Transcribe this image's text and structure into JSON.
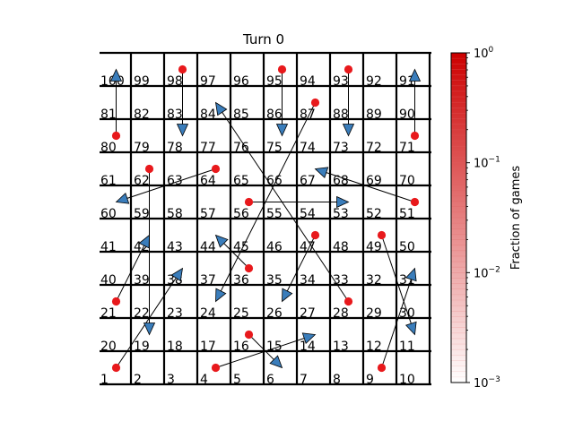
{
  "title": "Turn 0",
  "colorbar": {
    "label": "Fraction of games",
    "scale": "log",
    "range": [
      0.001,
      1
    ],
    "ticks": [
      {
        "value": 1,
        "base": "10",
        "exp": "0"
      },
      {
        "value": 0.1,
        "base": "10",
        "exp": "−1"
      },
      {
        "value": 0.01,
        "base": "10",
        "exp": "−2"
      },
      {
        "value": 0.001,
        "base": "10",
        "exp": "−3"
      }
    ],
    "color_high": "#cc0000",
    "color_low": "#ffffff"
  },
  "board": {
    "size": 100,
    "rows": 10,
    "cols": 10,
    "layout": "boustrophedon, square 1 at bottom-left",
    "line_color": "#000000"
  },
  "jumps": [
    {
      "from": 1,
      "to": 38
    },
    {
      "from": 4,
      "to": 14
    },
    {
      "from": 9,
      "to": 31
    },
    {
      "from": 16,
      "to": 6
    },
    {
      "from": 21,
      "to": 42
    },
    {
      "from": 28,
      "to": 84
    },
    {
      "from": 36,
      "to": 44
    },
    {
      "from": 47,
      "to": 26
    },
    {
      "from": 49,
      "to": 11
    },
    {
      "from": 51,
      "to": 67
    },
    {
      "from": 56,
      "to": 53
    },
    {
      "from": 62,
      "to": 19
    },
    {
      "from": 64,
      "to": 60
    },
    {
      "from": 71,
      "to": 91
    },
    {
      "from": 80,
      "to": 100
    },
    {
      "from": 87,
      "to": 24
    },
    {
      "from": 93,
      "to": 73
    },
    {
      "from": 95,
      "to": 75
    },
    {
      "from": 98,
      "to": 78
    }
  ],
  "marker_colors": {
    "start": "#e8191c",
    "arrow_fill": "#3a7dbb",
    "line": "#000000"
  }
}
